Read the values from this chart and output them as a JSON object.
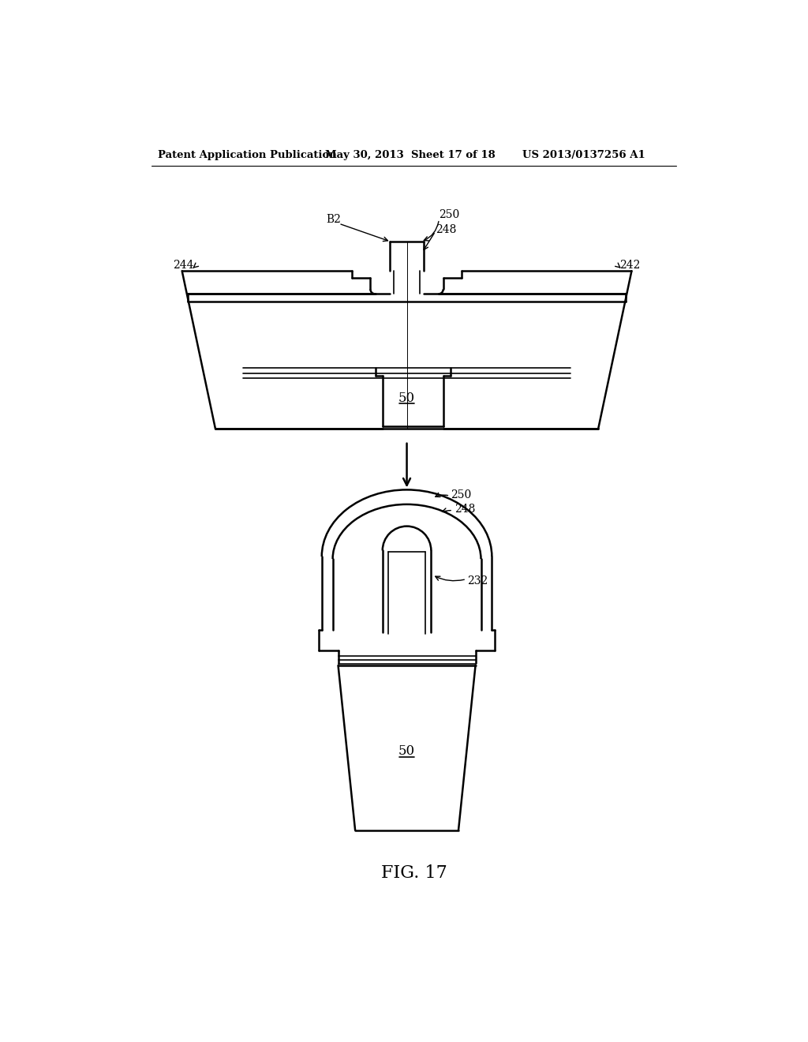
{
  "bg_color": "#ffffff",
  "line_color": "#000000",
  "header_left": "Patent Application Publication",
  "header_mid": "May 30, 2013  Sheet 17 of 18",
  "header_right": "US 2013/0137256 A1",
  "fig_label": "FIG. 17"
}
